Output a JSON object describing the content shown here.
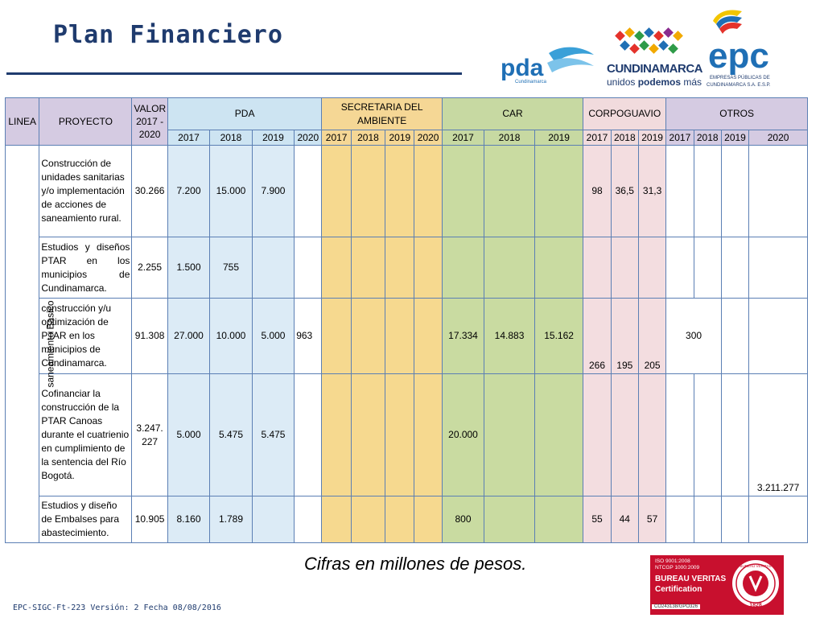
{
  "title": "Plan Financiero",
  "logos": {
    "pda": "pda",
    "pda_sub": "Cundinamarca",
    "cund": "CUNDINAMARCA",
    "cund_tag_normal": "unidos ",
    "cund_tag_bold": "podemos",
    "cund_tag_end": " más",
    "epc": "epc",
    "epc_sub1": "EMPRESAS PÚBLICAS DE",
    "epc_sub2": "CUNDINAMARCA S.A. E.S.P."
  },
  "table": {
    "headers": {
      "linea": "LINEA",
      "proyecto": "PROYECTO",
      "valor": "VALOR 2017 - 2020",
      "pda": "PDA",
      "secretaria": "SECRETARIA DEL AMBIENTE",
      "car": "CAR",
      "corpoguavio": "CORPOGUAVIO",
      "otros": "OTROS"
    },
    "years": {
      "pda": [
        "2017",
        "2018",
        "2019",
        "2020"
      ],
      "sec": [
        "2017",
        "2018",
        "2019",
        "2020"
      ],
      "car": [
        "2017",
        "2018",
        "2019"
      ],
      "corp": [
        "2017",
        "2018",
        "2019"
      ],
      "otros": [
        "2017",
        "2018",
        "2019",
        "2020"
      ]
    },
    "linea_label": "saneamiento Basico",
    "rows": [
      {
        "proyecto": "Construcción de unidades sanitarias y/o implementación de acciones de saneamiento rural.",
        "valor": "30.266",
        "pda": [
          "7.200",
          "15.000",
          "7.900",
          ""
        ],
        "sec": [
          "",
          "",
          "",
          ""
        ],
        "car": [
          "",
          "",
          ""
        ],
        "corp": [
          "98",
          "36,5",
          "31,3"
        ],
        "otros": [
          "",
          "",
          "",
          ""
        ]
      },
      {
        "proyecto": "Estudios y diseños PTAR en los municipios de Cundinamarca.",
        "valor": "2.255",
        "pda": [
          "1.500",
          "755",
          "",
          ""
        ],
        "sec": [
          "",
          "",
          "",
          ""
        ],
        "car": [
          "",
          "",
          ""
        ],
        "corp": [
          "",
          "",
          ""
        ],
        "otros": [
          "",
          "",
          "",
          ""
        ]
      },
      {
        "proyecto": "construcción y/u optimización de PTAR en los municipios de Cundinamarca.",
        "valor": "91.308",
        "pda": [
          "27.000",
          "10.000",
          "5.000",
          "963"
        ],
        "sec": [
          "",
          "",
          "",
          ""
        ],
        "car": [
          "17.334",
          "14.883",
          "15.162"
        ],
        "corp": [
          "266",
          "195",
          "205"
        ],
        "otros": [
          "300",
          "",
          "",
          ""
        ]
      },
      {
        "proyecto": "Cofinanciar la construcción de la PTAR Canoas durante el cuatrienio en cumplimiento de la sentencia del Río Bogotá.",
        "valor": "3.247. 227",
        "pda": [
          "5.000",
          "5.475",
          "5.475",
          ""
        ],
        "sec": [
          "",
          "",
          "",
          ""
        ],
        "car": [
          "20.000",
          "",
          ""
        ],
        "corp": [
          "",
          "",
          ""
        ],
        "otros": [
          "",
          "",
          "",
          "3.211.277"
        ]
      },
      {
        "proyecto": "Estudios y diseño de Embalses para abastecimiento.",
        "valor": "10.905",
        "pda": [
          "8.160",
          "1.789",
          "",
          ""
        ],
        "sec": [
          "",
          "",
          "",
          ""
        ],
        "car": [
          "800",
          "",
          ""
        ],
        "corp": [
          "55",
          "44",
          "57"
        ],
        "otros": [
          "",
          "",
          "",
          ""
        ]
      }
    ]
  },
  "note": "Cifras en millones de pesos.",
  "footer": "EPC-SIGC-Ft-223 Versión: 2 Fecha 08/08/2016",
  "certification": {
    "line1": "ISO 9001:2008",
    "line2": "NTCGP 1000:2009",
    "line3": "BUREAU VERITAS",
    "line4": "Certification",
    "code": "CO243138/GPO326",
    "seal_text": "BUREAU VERITAS",
    "seal_year": "1828"
  },
  "colors": {
    "title": "#1f3b6e",
    "pda": "#cde4f2",
    "secretaria": "#f5d795",
    "car": "#c7d9a2",
    "corpoguavio": "#f1dbdd",
    "otros": "#d5cbe2",
    "border": "#5b7fb4",
    "bureau_red": "#c8102e"
  }
}
